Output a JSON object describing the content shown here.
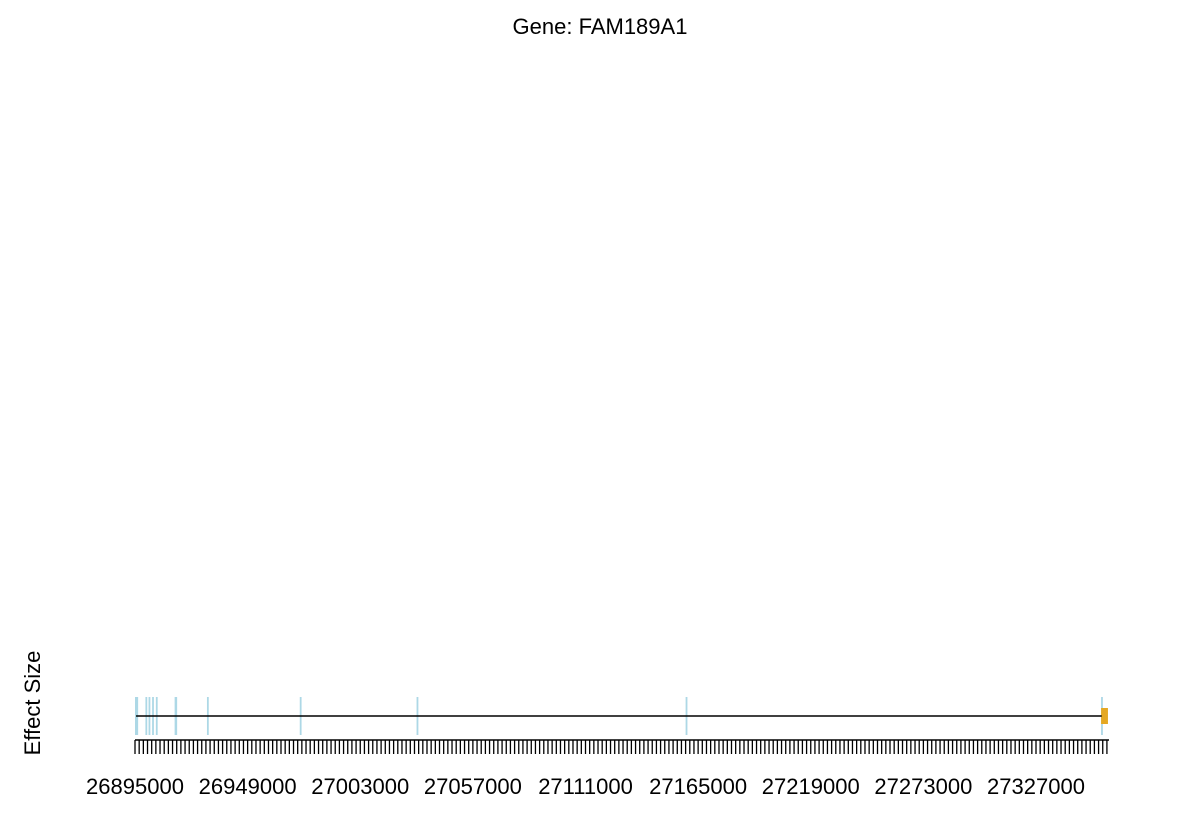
{
  "chart_data": {
    "type": "gene_structure_track",
    "title": "Gene: FAM189A1",
    "xlabel": "",
    "ylabel": "Effect Size",
    "x_tick_labels": [
      "26895000",
      "26949000",
      "27003000",
      "27057000",
      "27111000",
      "27165000",
      "27219000",
      "27273000",
      "27327000"
    ],
    "x_ticks": [
      26895000,
      26949000,
      27003000,
      27057000,
      27111000,
      27165000,
      27219000,
      27273000,
      27327000
    ],
    "xlim": [
      26895000,
      27362000
    ],
    "minor_tick_step": 2000,
    "gene_span": [
      26895500,
      27358500
    ],
    "exons": [
      {
        "start": 26895000,
        "end": 26896500
      },
      {
        "start": 26900000,
        "end": 26900800
      },
      {
        "start": 26901500,
        "end": 26902200
      },
      {
        "start": 26903200,
        "end": 26903900
      },
      {
        "start": 26905000,
        "end": 26905800
      },
      {
        "start": 26914000,
        "end": 26915200
      },
      {
        "start": 26929500,
        "end": 26930300
      },
      {
        "start": 26974000,
        "end": 26974800
      },
      {
        "start": 27030000,
        "end": 27030800
      },
      {
        "start": 27159000,
        "end": 27159800
      },
      {
        "start": 27358200,
        "end": 27359000
      }
    ],
    "highlight": {
      "start": 27358200,
      "end": 27361500
    },
    "colors": {
      "exon": "#add8e6",
      "highlight": "#e5a823",
      "line": "#000000"
    }
  }
}
